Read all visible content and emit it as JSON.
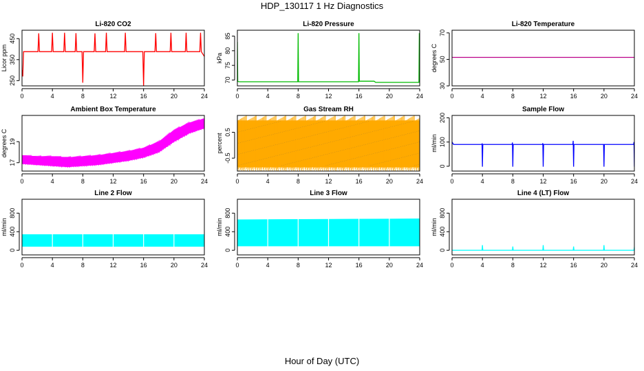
{
  "page": {
    "title": "HDP_130117  1 Hz Diagnostics",
    "xlabel": "Hour of Day (UTC)"
  },
  "chart_data": [
    {
      "type": "line",
      "title": "Li-820 CO2",
      "ylabel": "Licor ppm",
      "color": "#ff0000",
      "xlim": [
        0,
        24
      ],
      "ylim": [
        225,
        490
      ],
      "xticks": [
        0,
        4,
        8,
        12,
        16,
        20,
        24
      ],
      "yticks": [
        250,
        350,
        450
      ],
      "series": [
        {
          "x": [
            0,
            0.1,
            0.2,
            2.1,
            2.2,
            2.3,
            3.9,
            4.0,
            4.1,
            5.5,
            5.6,
            5.7,
            7.0,
            7.1,
            7.2,
            7.9,
            8.0,
            8.1,
            9.5,
            9.6,
            9.7,
            11.0,
            11.1,
            11.2,
            13.5,
            13.6,
            13.7,
            15.9,
            16.0,
            16.1,
            17.5,
            17.6,
            17.7,
            19.5,
            19.6,
            19.7,
            21.5,
            21.6,
            21.7,
            23.4,
            23.5,
            23.6,
            24
          ],
          "y": [
            300,
            270,
            388,
            388,
            475,
            388,
            388,
            478,
            388,
            388,
            478,
            388,
            388,
            476,
            388,
            388,
            240,
            388,
            388,
            475,
            388,
            388,
            478,
            388,
            388,
            478,
            388,
            388,
            225,
            388,
            388,
            476,
            388,
            388,
            478,
            388,
            388,
            478,
            388,
            388,
            478,
            388,
            365
          ]
        }
      ]
    },
    {
      "type": "line",
      "title": "Li-820 Pressure",
      "ylabel": "kPa",
      "color": "#00bb00",
      "xlim": [
        0,
        24
      ],
      "ylim": [
        68,
        87
      ],
      "xticks": [
        0,
        4,
        8,
        12,
        16,
        20,
        24
      ],
      "yticks": [
        70,
        75,
        80,
        85
      ],
      "series": [
        {
          "x": [
            0,
            0.05,
            0.3,
            7.95,
            8.0,
            8.05,
            15.95,
            16.0,
            16.05,
            16.2,
            18.0,
            18.2,
            23.9,
            23.95,
            24
          ],
          "y": [
            83,
            69.5,
            69.4,
            69.4,
            86,
            69.4,
            69.4,
            86,
            69.6,
            69.6,
            69.6,
            69.2,
            69.2,
            86,
            69.2
          ]
        }
      ]
    },
    {
      "type": "line",
      "title": "Li-820 Temperature",
      "ylabel": "degrees C",
      "color": "#bb0088",
      "xlim": [
        0,
        24
      ],
      "ylim": [
        30,
        72
      ],
      "xticks": [
        0,
        4,
        8,
        12,
        16,
        20,
        24
      ],
      "yticks": [
        30,
        50,
        70
      ],
      "series": [
        {
          "x": [
            0,
            24
          ],
          "y": [
            51.5,
            51.5
          ]
        }
      ]
    },
    {
      "type": "area",
      "title": "Ambient Box Temperature",
      "ylabel": "degrees C",
      "color": "#ff00ff",
      "xlim": [
        0,
        24
      ],
      "ylim": [
        16.2,
        21.5
      ],
      "xticks": [
        0,
        4,
        8,
        12,
        16,
        20,
        24
      ],
      "yticks": [
        17,
        19
      ],
      "series": [
        {
          "x": [
            0,
            2,
            4,
            6,
            8,
            10,
            12,
            14,
            16,
            18,
            20,
            22,
            24
          ],
          "y_low": [
            16.9,
            16.8,
            16.7,
            16.6,
            16.7,
            16.8,
            17.0,
            17.2,
            17.5,
            18.0,
            19.0,
            19.8,
            20.3
          ],
          "y_high": [
            17.7,
            17.6,
            17.6,
            17.5,
            17.6,
            17.7,
            17.9,
            18.1,
            18.4,
            19.0,
            20.1,
            20.8,
            21.2
          ]
        }
      ]
    },
    {
      "type": "area",
      "title": "Gas Stream RH",
      "ylabel": "percent",
      "color": "#ffaa00",
      "xlim": [
        0,
        24
      ],
      "ylim": [
        -1.0,
        1.15
      ],
      "xticks": [
        0,
        4,
        8,
        12,
        16,
        20,
        24
      ],
      "yticks": [
        -0.5,
        0.5
      ],
      "series": [
        {
          "x": [
            0,
            24
          ],
          "y_low": [
            -0.85,
            -0.85
          ],
          "y_high": [
            0.95,
            0.95
          ]
        }
      ]
    },
    {
      "type": "line",
      "title": "Sample Flow",
      "ylabel": "ml/min",
      "color": "#0000ff",
      "xlim": [
        0,
        24
      ],
      "ylim": [
        -20,
        210
      ],
      "xticks": [
        0,
        4,
        8,
        12,
        16,
        20,
        24
      ],
      "yticks": [
        0,
        100,
        200
      ],
      "series": [
        {
          "x": [
            0,
            0.2,
            3.9,
            3.95,
            4.0,
            4.05,
            7.9,
            7.95,
            8.0,
            8.05,
            11.9,
            11.95,
            12.0,
            12.05,
            15.9,
            15.95,
            16.0,
            16.05,
            19.9,
            19.95,
            20.0,
            20.05,
            23.9,
            23.95,
            24.0
          ],
          "y": [
            100,
            90,
            90,
            92,
            -2,
            90,
            90,
            98,
            -2,
            90,
            90,
            95,
            -2,
            90,
            90,
            105,
            -2,
            90,
            90,
            90,
            -2,
            90,
            90,
            100,
            -2
          ]
        }
      ]
    },
    {
      "type": "area",
      "title": "Line 2 Flow",
      "ylabel": "ml/min",
      "color": "#00ffff",
      "xlim": [
        0,
        24
      ],
      "ylim": [
        -100,
        1100
      ],
      "xticks": [
        0,
        4,
        8,
        12,
        16,
        20,
        24
      ],
      "yticks": [
        0,
        400,
        800
      ],
      "series": [
        {
          "x": [
            0,
            24
          ],
          "y_low": [
            80,
            80
          ],
          "y_high": [
            340,
            340
          ]
        }
      ],
      "gaps": [
        4,
        8,
        12,
        16,
        20
      ]
    },
    {
      "type": "area",
      "title": "Line 3 Flow",
      "ylabel": "ml/min",
      "color": "#00ffff",
      "xlim": [
        0,
        24
      ],
      "ylim": [
        -100,
        1100
      ],
      "xticks": [
        0,
        4,
        8,
        12,
        16,
        20,
        24
      ],
      "yticks": [
        0,
        400,
        800
      ],
      "series": [
        {
          "x": [
            0,
            24
          ],
          "y_low": [
            90,
            90
          ],
          "y_high": [
            660,
            680
          ]
        }
      ],
      "gaps": [
        4,
        8,
        12,
        16,
        20
      ]
    },
    {
      "type": "line",
      "title": "Line 4 (LT) Flow",
      "ylabel": "ml/min",
      "color": "#00ffff",
      "xlim": [
        0,
        24
      ],
      "ylim": [
        -100,
        1100
      ],
      "xticks": [
        0,
        4,
        8,
        12,
        16,
        20,
        24
      ],
      "yticks": [
        0,
        400,
        800
      ],
      "series": [
        {
          "x": [
            0,
            3.95,
            4.0,
            4.05,
            7.95,
            8.0,
            8.05,
            11.95,
            12.0,
            12.05,
            15.95,
            16.0,
            16.05,
            19.95,
            20.0,
            20.05,
            23.95,
            24.0
          ],
          "y": [
            0,
            0,
            110,
            0,
            0,
            80,
            0,
            0,
            110,
            0,
            0,
            80,
            0,
            0,
            110,
            0,
            0,
            70
          ]
        }
      ]
    }
  ]
}
